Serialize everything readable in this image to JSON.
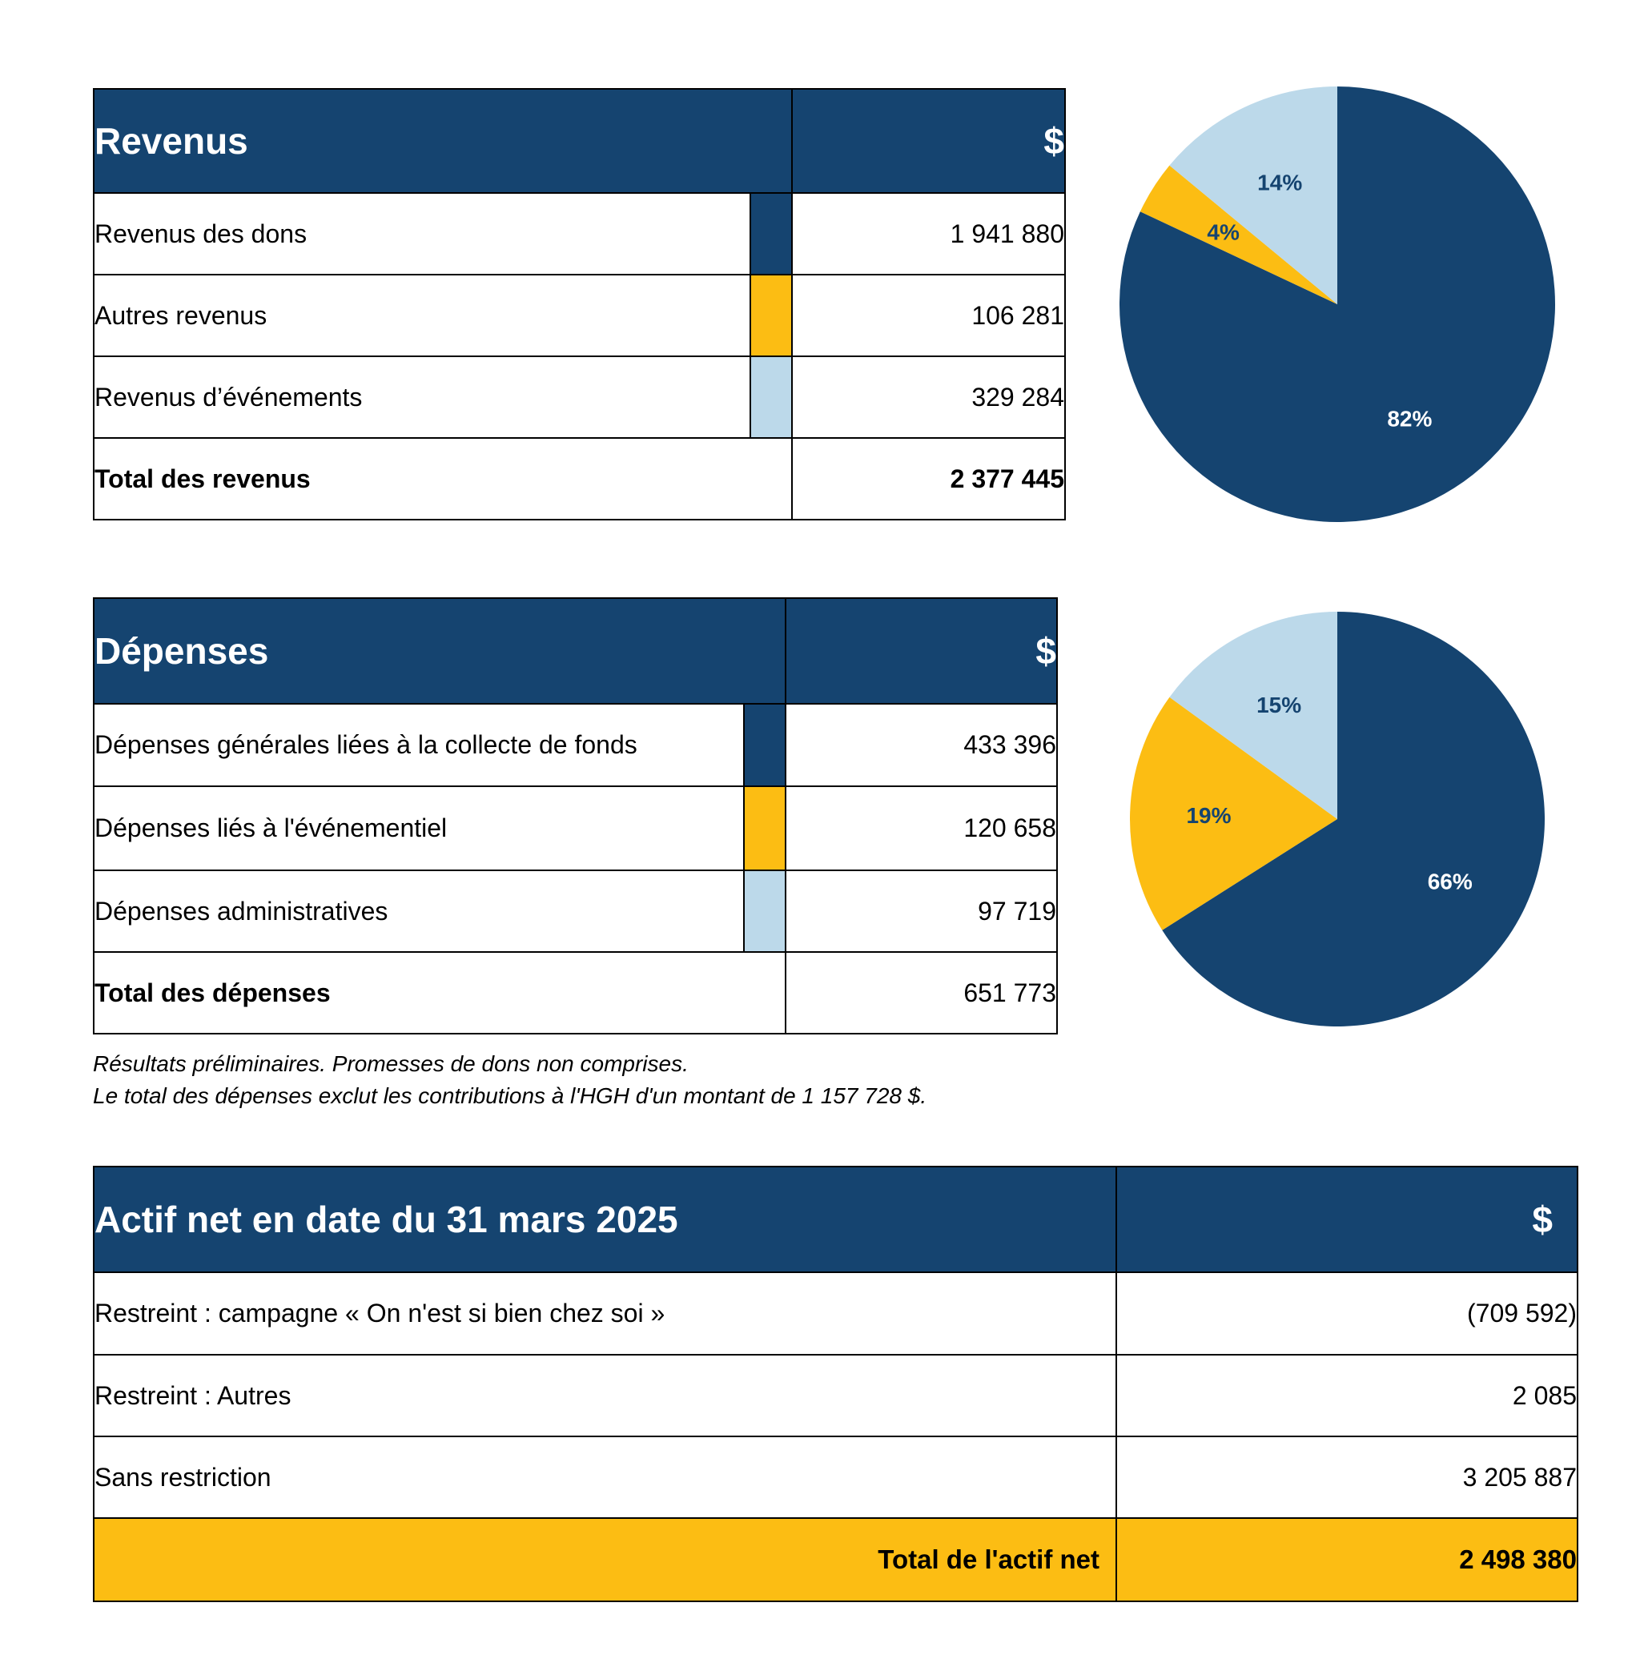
{
  "revenus": {
    "title": "Revenus",
    "currency": "$",
    "rows": [
      {
        "label": "Revenus des dons",
        "amount": "1 941 880",
        "color": "#154470"
      },
      {
        "label": "Autres revenus",
        "amount": "106 281",
        "color": "#fcbd13"
      },
      {
        "label": "Revenus d’événements",
        "amount": "329 284",
        "color": "#bcd9ea"
      }
    ],
    "total_label": "Total des revenus",
    "total_amount": "2 377 445"
  },
  "depenses": {
    "title": "Dépenses",
    "currency": "$",
    "rows": [
      {
        "label": "Dépenses générales liées à la collecte de fonds",
        "amount": "433 396",
        "color": "#154470"
      },
      {
        "label": "Dépenses liés à l'événementiel",
        "amount": "120 658",
        "color": "#fcbd13"
      },
      {
        "label": "Dépenses administratives",
        "amount": "97 719",
        "color": "#bcd9ea"
      }
    ],
    "total_label": "Total des dépenses",
    "total_amount": "651 773"
  },
  "notes": {
    "line1": "Résultats préliminaires. Promesses de dons non comprises.",
    "line2": "Le total des dépenses exclut les contributions à l'HGH d'un montant de 1 157 728 $."
  },
  "actif": {
    "title": "Actif net en date du 31 mars 2025",
    "currency": "$",
    "rows": [
      {
        "label": "Restreint : campagne « On n'est si bien chez soi »",
        "amount": "(709 592)"
      },
      {
        "label": "Restreint : Autres",
        "amount": "2 085"
      },
      {
        "label": "Sans restriction",
        "amount": "3 205 887"
      }
    ],
    "total_label": "Total de l'actif net",
    "total_amount": "2 498 380"
  },
  "chart_data": [
    {
      "type": "pie",
      "categories": [
        "Revenus des dons",
        "Autres revenus",
        "Revenus d’événements"
      ],
      "values": [
        82,
        4,
        14
      ],
      "labels": [
        "82%",
        "4%",
        "14%"
      ],
      "colors": [
        "#154470",
        "#fcbd13",
        "#bcd9ea"
      ],
      "label_colors": [
        "#ffffff",
        "#154470",
        "#154470"
      ]
    },
    {
      "type": "pie",
      "categories": [
        "Dépenses générales liées à la collecte de fonds",
        "Dépenses liés à l'événementiel",
        "Dépenses administratives"
      ],
      "values": [
        66,
        19,
        15
      ],
      "labels": [
        "66%",
        "19%",
        "15%"
      ],
      "colors": [
        "#154470",
        "#fcbd13",
        "#bcd9ea"
      ],
      "label_colors": [
        "#ffffff",
        "#154470",
        "#154470"
      ]
    }
  ]
}
